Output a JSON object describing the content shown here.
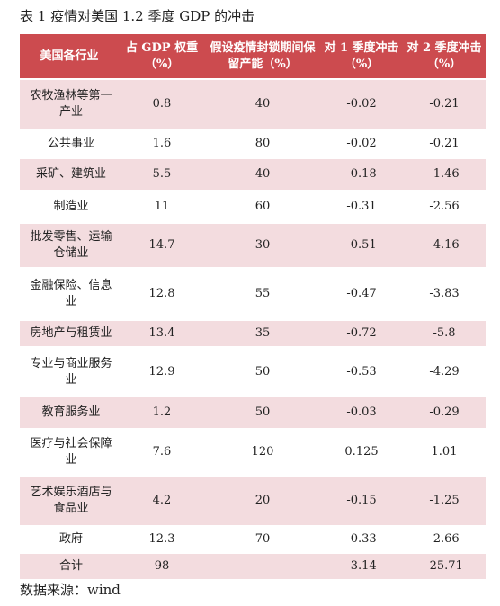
{
  "caption": "表 1 疫情对美国 1.2 季度 GDP 的冲击",
  "table": {
    "headers": [
      "美国各行业",
      "占 GDP 权重（%）",
      "假设疫情封锁期间保留产能（%）",
      "对 1 季度冲击（%）",
      "对 2 季度冲击（%）"
    ],
    "rows": [
      {
        "industry": "农牧渔林等第一产业",
        "weight": "0.8",
        "capacity": "40",
        "q1": "-0.02",
        "q2": "-0.21"
      },
      {
        "industry": "公共事业",
        "weight": "1.6",
        "capacity": "80",
        "q1": "-0.02",
        "q2": "-0.21"
      },
      {
        "industry": "采矿、建筑业",
        "weight": "5.5",
        "capacity": "40",
        "q1": "-0.18",
        "q2": "-1.46"
      },
      {
        "industry": "制造业",
        "weight": "11",
        "capacity": "60",
        "q1": "-0.31",
        "q2": "-2.56"
      },
      {
        "industry": "批发零售、运输仓储业",
        "weight": "14.7",
        "capacity": "30",
        "q1": "-0.51",
        "q2": "-4.16"
      },
      {
        "industry": "金融保险、信息业",
        "weight": "12.8",
        "capacity": "55",
        "q1": "-0.47",
        "q2": "-3.83"
      },
      {
        "industry": "房地产与租赁业",
        "weight": "13.4",
        "capacity": "35",
        "q1": "-0.72",
        "q2": "-5.8"
      },
      {
        "industry": "专业与商业服务业",
        "weight": "12.9",
        "capacity": "50",
        "q1": "-0.53",
        "q2": "-4.29"
      },
      {
        "industry": "教育服务业",
        "weight": "1.2",
        "capacity": "50",
        "q1": "-0.03",
        "q2": "-0.29"
      },
      {
        "industry": "医疗与社会保障业",
        "weight": "7.6",
        "capacity": "120",
        "q1": "0.125",
        "q2": "1.01"
      },
      {
        "industry": "艺术娱乐酒店与食品业",
        "weight": "4.2",
        "capacity": "20",
        "q1": "-0.15",
        "q2": "-1.25"
      },
      {
        "industry": "政府",
        "weight": "12.3",
        "capacity": "70",
        "q1": "-0.33",
        "q2": "-2.66"
      },
      {
        "industry": "合计",
        "weight": "98",
        "capacity": "",
        "q1": "-3.14",
        "q2": "-25.71"
      }
    ]
  },
  "source": "数据来源：wind",
  "colors": {
    "header_bg": "#cc4b4f",
    "header_text": "#ffffff",
    "row_tint": "#f3dcdf",
    "row_plain": "#ffffff"
  }
}
